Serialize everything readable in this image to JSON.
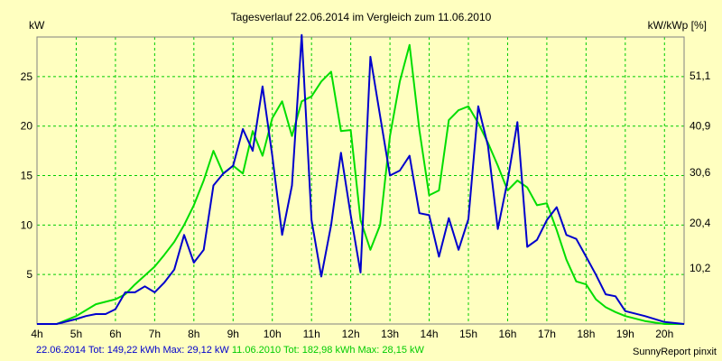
{
  "chart_data": {
    "type": "line",
    "title": "Tagesverlauf 22.06.2014 im Vergleich zum 11.06.2010",
    "ylabel": "kW",
    "y2label": "kW/kWp [%]",
    "xlabel": "",
    "xlim": [
      4,
      20.5
    ],
    "ylim": [
      0,
      29
    ],
    "x_ticks": [
      4,
      5,
      6,
      7,
      8,
      9,
      10,
      11,
      12,
      13,
      14,
      15,
      16,
      17,
      18,
      19,
      20
    ],
    "x_tick_labels": [
      "4h",
      "5h",
      "6h",
      "7h",
      "8h",
      "9h",
      "10h",
      "11h",
      "12h",
      "13h",
      "14h",
      "15h",
      "16h",
      "17h",
      "18h",
      "19h",
      "20h"
    ],
    "y_ticks": [
      5,
      10,
      15,
      20,
      25
    ],
    "y_tick_labels": [
      "5",
      "10",
      "15",
      "20",
      "25"
    ],
    "y2_ticks": [
      5.67,
      10.2,
      15.3,
      20.0,
      25.1
    ],
    "y2_tick_labels": [
      "10,2",
      "20,4",
      "30,6",
      "40,9",
      "51,1"
    ],
    "grid": true,
    "grid_color": "#00cc00",
    "background": "#ffffc0",
    "series": [
      {
        "name": "22.06.2014",
        "color": "#0000cc",
        "x": [
          4,
          4.5,
          5,
          5.25,
          5.5,
          5.75,
          6,
          6.25,
          6.5,
          6.75,
          7,
          7.25,
          7.5,
          7.75,
          8,
          8.25,
          8.5,
          8.75,
          9,
          9.25,
          9.5,
          9.75,
          10,
          10.25,
          10.5,
          10.75,
          11,
          11.25,
          11.5,
          11.75,
          12,
          12.25,
          12.5,
          12.75,
          13,
          13.25,
          13.5,
          13.75,
          14,
          14.25,
          14.5,
          14.75,
          15,
          15.25,
          15.5,
          15.75,
          16,
          16.25,
          16.5,
          16.75,
          17,
          17.25,
          17.5,
          17.75,
          18,
          18.25,
          18.5,
          18.75,
          19,
          19.5,
          20,
          20.5
        ],
        "y": [
          0,
          0,
          0.5,
          0.8,
          1.0,
          1.0,
          1.5,
          3.2,
          3.2,
          3.8,
          3.2,
          4.2,
          5.5,
          9.0,
          6.2,
          7.5,
          14.0,
          15.2,
          16.0,
          19.7,
          17.5,
          24.0,
          17.0,
          9.0,
          14.0,
          29.2,
          10.5,
          4.8,
          10.0,
          17.3,
          11.0,
          5.2,
          27.0,
          21.0,
          15.0,
          15.5,
          17.0,
          11.2,
          11.0,
          6.8,
          10.7,
          7.5,
          10.6,
          22.0,
          18.0,
          9.6,
          14.5,
          20.4,
          7.8,
          8.5,
          10.5,
          11.8,
          9.0,
          8.6,
          6.8,
          5.0,
          3.0,
          2.8,
          1.3,
          0.8,
          0.2,
          0
        ]
      },
      {
        "name": "11.06.2010",
        "color": "#00dd00",
        "x": [
          4,
          4.5,
          5,
          5.5,
          6,
          6.25,
          6.5,
          7,
          7.25,
          7.5,
          7.75,
          8,
          8.25,
          8.5,
          8.75,
          9,
          9.25,
          9.5,
          9.75,
          10,
          10.25,
          10.5,
          10.75,
          11,
          11.25,
          11.5,
          11.75,
          12,
          12.25,
          12.5,
          12.75,
          13,
          13.25,
          13.5,
          13.75,
          14,
          14.25,
          14.5,
          14.75,
          15,
          15.25,
          15.5,
          15.75,
          16,
          16.25,
          16.5,
          16.75,
          17,
          17.25,
          17.5,
          17.75,
          18,
          18.25,
          18.5,
          18.75,
          19,
          19.5,
          20,
          20.5
        ],
        "y": [
          0,
          0,
          0.8,
          2.0,
          2.5,
          3.0,
          4.0,
          5.8,
          7.0,
          8.3,
          10.0,
          12.0,
          14.5,
          17.5,
          15.2,
          16.0,
          15.2,
          19.5,
          17.0,
          20.8,
          22.5,
          19.0,
          22.5,
          23.0,
          24.5,
          25.5,
          19.5,
          19.6,
          10.5,
          7.5,
          10.0,
          19.0,
          24.5,
          28.2,
          19.6,
          13.0,
          13.5,
          20.6,
          21.6,
          22.0,
          20.3,
          18.3,
          16.0,
          13.5,
          14.5,
          13.8,
          12.0,
          12.2,
          9.5,
          6.5,
          4.3,
          4.0,
          2.5,
          1.7,
          1.2,
          0.8,
          0.3,
          0,
          0
        ]
      }
    ]
  },
  "footer": {
    "blue_text": "22.06.2014 Tot: 149,22 kWh Max: 29,12 kW",
    "blue_color": "#0000cc",
    "green_text": "11.06.2010 Tot: 182,98 kWh Max: 28,15 kW",
    "green_color": "#00cc00",
    "credit": "SunnyReport pinxit"
  }
}
